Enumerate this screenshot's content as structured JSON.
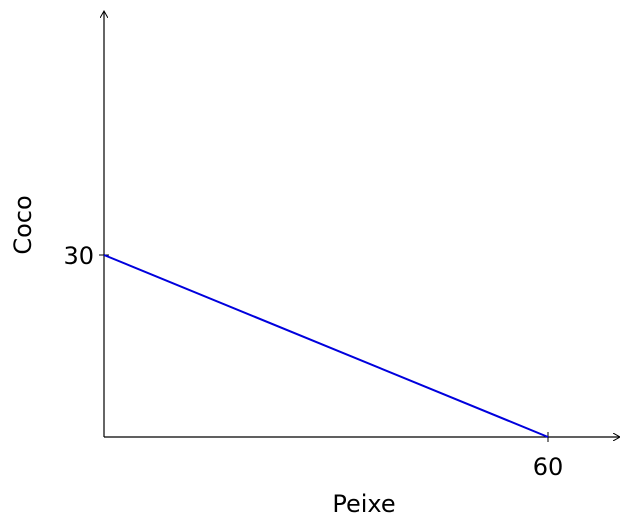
{
  "chart_data": {
    "type": "line",
    "title": "",
    "xlabel": "Peixe",
    "ylabel": "Coco",
    "xlim": [
      0,
      70
    ],
    "ylim": [
      0,
      50
    ],
    "x_ticks": [
      60
    ],
    "y_ticks": [
      30
    ],
    "grid": false,
    "legend": "none",
    "series": [
      {
        "color": "#0000dd",
        "points": [
          {
            "x": 0,
            "y": 30
          },
          {
            "x": 60,
            "y": 0
          }
        ]
      }
    ]
  }
}
